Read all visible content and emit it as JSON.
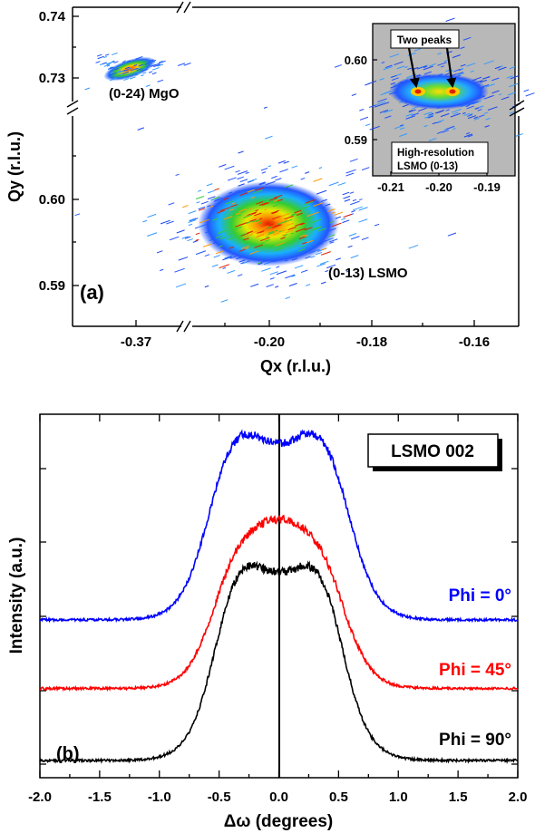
{
  "chart_data": [
    {
      "panel_label": "(a)",
      "type": "heatmap",
      "xlabel": "Qx (r.l.u.)",
      "ylabel": "Qy (r.l.u.)",
      "x_ticks": [
        "-0.37",
        "-0.20",
        "-0.18",
        "-0.16"
      ],
      "y_ticks_upper": [
        "0.74",
        "0.73"
      ],
      "y_ticks_lower": [
        "0.60",
        "0.59"
      ],
      "axis_breaks": {
        "x": [
          -0.36,
          -0.22
        ],
        "y": [
          0.61,
          0.725
        ]
      },
      "peaks": [
        {
          "label": "(0-24) MgO",
          "qx": -0.363,
          "qy": 0.732,
          "width_qx": 0.008,
          "width_qy": 0.002
        },
        {
          "label": "(0-13) LSMO",
          "qx": -0.2,
          "qy": 0.5965,
          "width_qx": 0.022,
          "width_qy": 0.0085
        }
      ],
      "inset": {
        "type": "heatmap",
        "title_lines": [
          "High-resolution",
          "LSMO (0-13)"
        ],
        "annotation": "Two peaks",
        "x_ticks": [
          "-0.21",
          "-0.20",
          "-0.19"
        ],
        "y_ticks": [
          "0.60",
          "0.59"
        ],
        "xlim": [
          -0.21,
          -0.187
        ],
        "ylim": [
          0.585,
          0.605
        ],
        "peaks": [
          {
            "qx": -0.2015,
            "qy": 0.5965
          },
          {
            "qx": -0.1955,
            "qy": 0.5965
          }
        ]
      }
    },
    {
      "panel_label": "(b)",
      "type": "line",
      "xlabel": "Δω (degrees)",
      "ylabel": "Intensity (a.u.)",
      "xlim": [
        -2.0,
        2.0
      ],
      "x_ticks": [
        "-2.0",
        "-1.5",
        "-1.0",
        "-0.5",
        "0.0",
        "0.5",
        "1.0",
        "1.5",
        "2.0"
      ],
      "box_label": "LSMO 002",
      "vertical_line_x": 0.0,
      "series": [
        {
          "name": "Phi = 0°",
          "color": "#0000ff",
          "baseline": 0.43,
          "peak": 1.0,
          "half_width": 0.62,
          "flat_top": true
        },
        {
          "name": "Phi = 45°",
          "color": "#ff0000",
          "baseline": 0.22,
          "peak": 0.74,
          "half_width": 0.58,
          "flat_top": false
        },
        {
          "name": "Phi = 90°",
          "color": "#000000",
          "baseline": 0.0,
          "peak": 0.61,
          "half_width": 0.56,
          "flat_top": true
        }
      ]
    }
  ]
}
